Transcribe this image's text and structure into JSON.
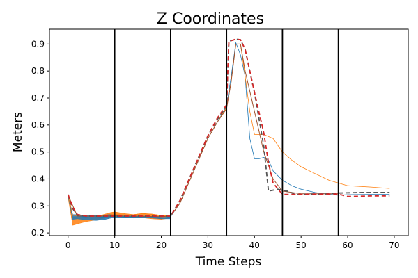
{
  "chart_data": {
    "type": "line",
    "title": "Z Coordinates",
    "xlabel": "Time Steps",
    "ylabel": "Meters",
    "xlim": [
      -4,
      73
    ],
    "ylim": [
      0.19,
      0.955
    ],
    "xticks": [
      0,
      10,
      20,
      30,
      40,
      50,
      60,
      70
    ],
    "yticks": [
      0.2,
      0.3,
      0.4,
      0.5,
      0.6,
      0.7,
      0.8,
      0.9
    ],
    "grid": false,
    "vertical_lines_x": [
      10,
      22,
      34,
      46,
      58
    ],
    "colors": {
      "blue": "#1f77b4",
      "orange": "#ff7f0e",
      "gray_dashed": "#555555",
      "red_dashed": "#d62728",
      "brown": "#a0522d",
      "vline": "#000000"
    },
    "bands": [
      {
        "color": "#ff7f0e",
        "upper": [
          [
            0,
            0.34
          ],
          [
            1,
            0.26
          ],
          [
            2,
            0.26
          ],
          [
            3,
            0.265
          ],
          [
            5,
            0.26
          ],
          [
            7,
            0.265
          ],
          [
            9,
            0.275
          ],
          [
            10,
            0.278
          ],
          [
            12,
            0.272
          ],
          [
            14,
            0.268
          ],
          [
            16,
            0.272
          ],
          [
            18,
            0.27
          ],
          [
            20,
            0.265
          ],
          [
            22,
            0.262
          ]
        ],
        "lower": [
          [
            22,
            0.255
          ],
          [
            20,
            0.25
          ],
          [
            18,
            0.252
          ],
          [
            16,
            0.256
          ],
          [
            14,
            0.255
          ],
          [
            12,
            0.258
          ],
          [
            10,
            0.262
          ],
          [
            8,
            0.255
          ],
          [
            6,
            0.248
          ],
          [
            4,
            0.242
          ],
          [
            3,
            0.238
          ],
          [
            1,
            0.228
          ],
          [
            0,
            0.33
          ]
        ]
      },
      {
        "color": "#1f77b4",
        "upper": [
          [
            0,
            0.34
          ],
          [
            1,
            0.268
          ],
          [
            3,
            0.266
          ],
          [
            5,
            0.264
          ],
          [
            7,
            0.265
          ],
          [
            9,
            0.268
          ],
          [
            10,
            0.268
          ],
          [
            12,
            0.262
          ],
          [
            14,
            0.26
          ],
          [
            16,
            0.26
          ],
          [
            18,
            0.26
          ],
          [
            20,
            0.258
          ],
          [
            22,
            0.258
          ]
        ],
        "lower": [
          [
            22,
            0.252
          ],
          [
            20,
            0.252
          ],
          [
            18,
            0.255
          ],
          [
            16,
            0.256
          ],
          [
            14,
            0.256
          ],
          [
            12,
            0.257
          ],
          [
            10,
            0.258
          ],
          [
            8,
            0.25
          ],
          [
            6,
            0.246
          ],
          [
            4,
            0.248
          ],
          [
            2,
            0.252
          ],
          [
            1,
            0.25
          ],
          [
            0,
            0.335
          ]
        ]
      }
    ],
    "series": [
      {
        "color": "#1f77b4",
        "width": 0.8,
        "dash": "",
        "points": [
          [
            0,
            0.34
          ],
          [
            1,
            0.265
          ],
          [
            3,
            0.26
          ],
          [
            5,
            0.255
          ],
          [
            7,
            0.258
          ],
          [
            10,
            0.262
          ],
          [
            13,
            0.258
          ],
          [
            16,
            0.256
          ],
          [
            20,
            0.255
          ],
          [
            22,
            0.26
          ],
          [
            24,
            0.31
          ],
          [
            26,
            0.39
          ],
          [
            28,
            0.47
          ],
          [
            30,
            0.55
          ],
          [
            32,
            0.61
          ],
          [
            34,
            0.67
          ],
          [
            35,
            0.78
          ],
          [
            36,
            0.905
          ],
          [
            37,
            0.86
          ],
          [
            38,
            0.78
          ],
          [
            39,
            0.55
          ],
          [
            40,
            0.475
          ],
          [
            41,
            0.475
          ],
          [
            42,
            0.48
          ],
          [
            43,
            0.47
          ],
          [
            44,
            0.43
          ],
          [
            46,
            0.395
          ],
          [
            48,
            0.375
          ],
          [
            50,
            0.362
          ],
          [
            53,
            0.35
          ],
          [
            56,
            0.343
          ],
          [
            58,
            0.34
          ],
          [
            60,
            0.342
          ],
          [
            65,
            0.343
          ],
          [
            69,
            0.343
          ]
        ]
      },
      {
        "color": "#ff7f0e",
        "width": 0.8,
        "dash": "",
        "points": [
          [
            0,
            0.34
          ],
          [
            1,
            0.265
          ],
          [
            3,
            0.262
          ],
          [
            6,
            0.262
          ],
          [
            10,
            0.268
          ],
          [
            13,
            0.265
          ],
          [
            16,
            0.272
          ],
          [
            20,
            0.265
          ],
          [
            22,
            0.262
          ],
          [
            24,
            0.31
          ],
          [
            26,
            0.39
          ],
          [
            28,
            0.47
          ],
          [
            30,
            0.55
          ],
          [
            32,
            0.61
          ],
          [
            34,
            0.665
          ],
          [
            35,
            0.76
          ],
          [
            36,
            0.9
          ],
          [
            37,
            0.9
          ],
          [
            38,
            0.78
          ],
          [
            39,
            0.65
          ],
          [
            40,
            0.565
          ],
          [
            42,
            0.565
          ],
          [
            44,
            0.55
          ],
          [
            46,
            0.5
          ],
          [
            48,
            0.47
          ],
          [
            50,
            0.445
          ],
          [
            53,
            0.42
          ],
          [
            56,
            0.395
          ],
          [
            60,
            0.375
          ],
          [
            65,
            0.37
          ],
          [
            69,
            0.365
          ]
        ]
      },
      {
        "color": "#a0522d",
        "width": 1.0,
        "dash": "",
        "points": [
          [
            0,
            0.34
          ],
          [
            2,
            0.262
          ],
          [
            6,
            0.262
          ],
          [
            10,
            0.263
          ],
          [
            15,
            0.262
          ],
          [
            20,
            0.26
          ],
          [
            22,
            0.262
          ],
          [
            24,
            0.31
          ],
          [
            26,
            0.39
          ],
          [
            28,
            0.47
          ],
          [
            30,
            0.55
          ],
          [
            32,
            0.61
          ],
          [
            34,
            0.66
          ],
          [
            35,
            0.76
          ],
          [
            36,
            0.9
          ],
          [
            37,
            0.9
          ],
          [
            38,
            0.8
          ],
          [
            40,
            0.65
          ],
          [
            42,
            0.5
          ],
          [
            44,
            0.4
          ],
          [
            46,
            0.355
          ],
          [
            50,
            0.345
          ],
          [
            58,
            0.345
          ]
        ]
      },
      {
        "color": "#555555",
        "width": 1.8,
        "dash": "6,4",
        "points": [
          [
            0,
            0.342
          ],
          [
            1,
            0.29
          ],
          [
            2,
            0.265
          ],
          [
            4,
            0.262
          ],
          [
            8,
            0.262
          ],
          [
            10,
            0.262
          ],
          [
            14,
            0.262
          ],
          [
            18,
            0.262
          ],
          [
            22,
            0.262
          ],
          [
            24,
            0.32
          ],
          [
            26,
            0.4
          ],
          [
            28,
            0.48
          ],
          [
            30,
            0.56
          ],
          [
            32,
            0.62
          ],
          [
            34,
            0.67
          ],
          [
            34.5,
            0.91
          ],
          [
            36,
            0.918
          ],
          [
            37,
            0.916
          ],
          [
            38,
            0.88
          ],
          [
            40,
            0.72
          ],
          [
            42,
            0.52
          ],
          [
            43,
            0.355
          ],
          [
            45,
            0.362
          ],
          [
            47,
            0.355
          ],
          [
            49,
            0.342
          ],
          [
            52,
            0.344
          ],
          [
            55,
            0.344
          ],
          [
            58,
            0.348
          ],
          [
            63,
            0.35
          ],
          [
            69,
            0.35
          ]
        ]
      },
      {
        "color": "#d62728",
        "width": 1.8,
        "dash": "6,4",
        "points": [
          [
            0,
            0.342
          ],
          [
            1,
            0.295
          ],
          [
            2,
            0.268
          ],
          [
            4,
            0.262
          ],
          [
            8,
            0.262
          ],
          [
            10,
            0.262
          ],
          [
            14,
            0.262
          ],
          [
            18,
            0.262
          ],
          [
            22,
            0.262
          ],
          [
            24,
            0.32
          ],
          [
            26,
            0.4
          ],
          [
            28,
            0.48
          ],
          [
            30,
            0.56
          ],
          [
            32,
            0.625
          ],
          [
            34,
            0.675
          ],
          [
            34.5,
            0.91
          ],
          [
            36,
            0.918
          ],
          [
            37,
            0.916
          ],
          [
            38,
            0.88
          ],
          [
            40,
            0.72
          ],
          [
            42,
            0.57
          ],
          [
            43,
            0.46
          ],
          [
            44,
            0.385
          ],
          [
            46,
            0.343
          ],
          [
            50,
            0.343
          ],
          [
            55,
            0.344
          ],
          [
            58,
            0.344
          ],
          [
            60,
            0.335
          ],
          [
            65,
            0.337
          ],
          [
            69,
            0.337
          ]
        ]
      }
    ]
  }
}
